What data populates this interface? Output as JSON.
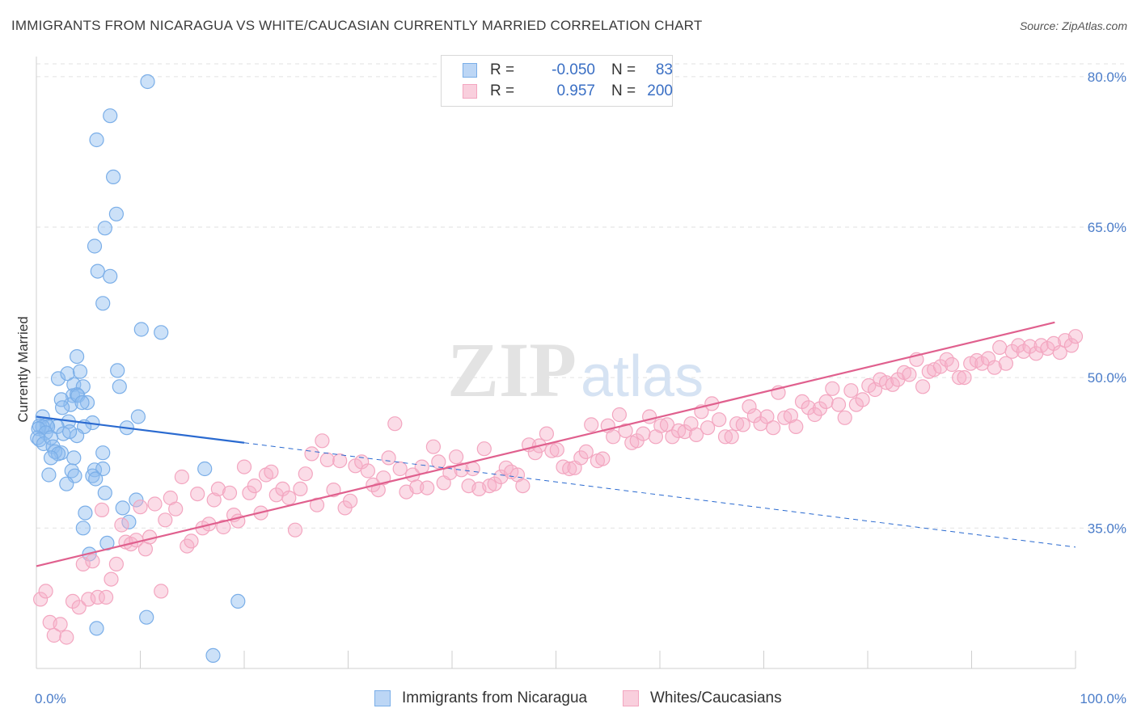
{
  "title": "IMMIGRANTS FROM NICARAGUA VS WHITE/CAUCASIAN CURRENTLY MARRIED CORRELATION CHART",
  "source": "Source: ZipAtlas.com",
  "watermark": {
    "zip": "ZIP",
    "atlas": "atlas"
  },
  "legend": {
    "r_label": "R =",
    "n_label": "N =",
    "rows": [
      {
        "r": "-0.050",
        "n": "83",
        "color": "#7aaee8"
      },
      {
        "r": "0.957",
        "n": "200",
        "color": "#f3a6c0"
      }
    ]
  },
  "chart_data": {
    "type": "scatter",
    "ylabel": "Currently Married",
    "xlim": [
      0,
      100
    ],
    "ylim": [
      21,
      82
    ],
    "y_ticks": [
      {
        "value": 80,
        "label": "80.0%"
      },
      {
        "value": 65,
        "label": "65.0%"
      },
      {
        "value": 50,
        "label": "50.0%"
      },
      {
        "value": 35,
        "label": "35.0%"
      }
    ],
    "x_tick_labels": [
      {
        "value": 0,
        "label": "0.0%"
      },
      {
        "value": 100,
        "label": "100.0%"
      }
    ],
    "grid": true,
    "series": [
      {
        "name": "Immigrants from Nicaragua",
        "color": "#7aaee8",
        "line_color": "#2a6ad0",
        "trend": {
          "x0": 0,
          "y0": 46.1,
          "x1": 100,
          "y1": 33.1,
          "solid_until": 20
        },
        "points": [
          [
            10.7,
            79.5
          ],
          [
            7.1,
            76.1
          ],
          [
            5.8,
            73.7
          ],
          [
            7.4,
            70.0
          ],
          [
            7.7,
            66.3
          ],
          [
            6.6,
            64.9
          ],
          [
            5.6,
            63.1
          ],
          [
            5.9,
            60.6
          ],
          [
            7.1,
            60.1
          ],
          [
            6.4,
            57.4
          ],
          [
            10.1,
            54.8
          ],
          [
            12.0,
            54.5
          ],
          [
            3.9,
            52.1
          ],
          [
            7.8,
            50.7
          ],
          [
            2.1,
            49.9
          ],
          [
            3.0,
            50.4
          ],
          [
            4.2,
            50.6
          ],
          [
            8.0,
            49.1
          ],
          [
            3.6,
            49.3
          ],
          [
            4.5,
            49.1
          ],
          [
            3.5,
            48.2
          ],
          [
            3.3,
            47.3
          ],
          [
            3.9,
            48.3
          ],
          [
            4.0,
            48.2
          ],
          [
            2.4,
            47.8
          ],
          [
            4.9,
            47.5
          ],
          [
            4.4,
            47.5
          ],
          [
            2.5,
            47.0
          ],
          [
            9.8,
            46.1
          ],
          [
            0.6,
            46.1
          ],
          [
            1.0,
            45.3
          ],
          [
            3.1,
            45.6
          ],
          [
            2.0,
            45.1
          ],
          [
            0.3,
            45.2
          ],
          [
            1.1,
            45.1
          ],
          [
            0.6,
            45.1
          ],
          [
            5.4,
            45.5
          ],
          [
            4.6,
            45.1
          ],
          [
            8.7,
            45.0
          ],
          [
            0.2,
            44.9
          ],
          [
            0.9,
            44.5
          ],
          [
            0.1,
            44.0
          ],
          [
            2.6,
            44.4
          ],
          [
            3.9,
            44.2
          ],
          [
            3.2,
            44.6
          ],
          [
            0.3,
            43.8
          ],
          [
            0.7,
            43.4
          ],
          [
            1.4,
            44.0
          ],
          [
            1.6,
            43.1
          ],
          [
            2.4,
            42.5
          ],
          [
            1.8,
            42.6
          ],
          [
            6.4,
            42.5
          ],
          [
            2.1,
            42.4
          ],
          [
            3.6,
            42.0
          ],
          [
            1.4,
            42.0
          ],
          [
            16.2,
            40.9
          ],
          [
            5.6,
            40.8
          ],
          [
            6.4,
            40.9
          ],
          [
            3.4,
            40.7
          ],
          [
            5.4,
            40.2
          ],
          [
            1.2,
            40.3
          ],
          [
            3.7,
            40.2
          ],
          [
            5.7,
            39.9
          ],
          [
            2.9,
            39.4
          ],
          [
            6.6,
            38.5
          ],
          [
            9.6,
            37.8
          ],
          [
            8.3,
            37.0
          ],
          [
            4.7,
            36.5
          ],
          [
            8.9,
            35.6
          ],
          [
            4.5,
            35.0
          ],
          [
            6.8,
            33.5
          ],
          [
            5.1,
            32.4
          ],
          [
            19.4,
            27.7
          ],
          [
            10.6,
            26.1
          ],
          [
            5.8,
            25.0
          ],
          [
            17.0,
            22.3
          ]
        ]
      },
      {
        "name": "Whites/Caucasians",
        "color": "#f3a6c0",
        "line_color": "#e0608e",
        "trend": {
          "x0": 0,
          "y0": 31.2,
          "x1": 98,
          "y1": 55.5,
          "solid_until": 98
        },
        "points": [
          [
            0.4,
            27.9
          ],
          [
            0.9,
            28.7
          ],
          [
            1.3,
            25.6
          ],
          [
            1.7,
            24.3
          ],
          [
            2.3,
            25.4
          ],
          [
            2.9,
            24.1
          ],
          [
            3.5,
            27.7
          ],
          [
            4.1,
            27.1
          ],
          [
            4.5,
            31.4
          ],
          [
            5.0,
            27.9
          ],
          [
            5.4,
            31.7
          ],
          [
            5.9,
            28.1
          ],
          [
            6.3,
            36.8
          ],
          [
            6.7,
            28.1
          ],
          [
            7.2,
            29.9
          ],
          [
            7.7,
            31.4
          ],
          [
            8.2,
            35.3
          ],
          [
            8.6,
            33.6
          ],
          [
            9.1,
            33.4
          ],
          [
            9.6,
            33.8
          ],
          [
            10.0,
            37.1
          ],
          [
            10.5,
            32.9
          ],
          [
            10.9,
            34.1
          ],
          [
            11.4,
            37.4
          ],
          [
            12.0,
            28.7
          ],
          [
            12.4,
            35.8
          ],
          [
            12.9,
            38.0
          ],
          [
            13.4,
            36.9
          ],
          [
            14.0,
            40.1
          ],
          [
            14.5,
            33.2
          ],
          [
            14.9,
            33.7
          ],
          [
            15.5,
            38.4
          ],
          [
            16.0,
            35.0
          ],
          [
            16.6,
            35.4
          ],
          [
            17.1,
            37.8
          ],
          [
            17.5,
            38.9
          ],
          [
            18.0,
            35.1
          ],
          [
            18.6,
            38.5
          ],
          [
            19.0,
            36.3
          ],
          [
            19.4,
            35.7
          ],
          [
            20.0,
            41.1
          ],
          [
            20.5,
            38.5
          ],
          [
            21.0,
            39.2
          ],
          [
            21.6,
            36.5
          ],
          [
            22.1,
            40.3
          ],
          [
            22.6,
            40.6
          ],
          [
            23.1,
            38.3
          ],
          [
            23.7,
            38.9
          ],
          [
            24.3,
            38.0
          ],
          [
            24.9,
            34.8
          ],
          [
            25.4,
            38.9
          ],
          [
            25.9,
            40.4
          ],
          [
            26.5,
            42.4
          ],
          [
            27.0,
            37.3
          ],
          [
            27.5,
            43.7
          ],
          [
            28.0,
            41.8
          ],
          [
            28.6,
            38.8
          ],
          [
            29.2,
            41.7
          ],
          [
            29.7,
            37.0
          ],
          [
            30.2,
            37.7
          ],
          [
            30.7,
            41.2
          ],
          [
            31.3,
            41.6
          ],
          [
            31.9,
            40.7
          ],
          [
            32.4,
            39.3
          ],
          [
            32.9,
            38.8
          ],
          [
            33.4,
            40.0
          ],
          [
            33.9,
            42.0
          ],
          [
            34.5,
            45.4
          ],
          [
            35.0,
            40.9
          ],
          [
            35.6,
            38.6
          ],
          [
            36.2,
            40.3
          ],
          [
            36.6,
            39.1
          ],
          [
            37.1,
            41.1
          ],
          [
            37.6,
            39.0
          ],
          [
            38.2,
            43.1
          ],
          [
            38.7,
            41.6
          ],
          [
            39.2,
            39.5
          ],
          [
            39.8,
            40.5
          ],
          [
            40.4,
            42.1
          ],
          [
            40.9,
            40.8
          ],
          [
            41.6,
            39.2
          ],
          [
            42.0,
            40.9
          ],
          [
            42.6,
            38.9
          ],
          [
            43.1,
            42.9
          ],
          [
            43.6,
            39.2
          ],
          [
            44.1,
            39.4
          ],
          [
            44.7,
            40.1
          ],
          [
            45.2,
            41.0
          ],
          [
            45.7,
            40.6
          ],
          [
            46.3,
            40.3
          ],
          [
            46.8,
            39.2
          ],
          [
            47.4,
            43.3
          ],
          [
            48.0,
            42.5
          ],
          [
            48.4,
            43.2
          ],
          [
            49.1,
            44.4
          ],
          [
            49.6,
            42.7
          ],
          [
            50.1,
            42.8
          ],
          [
            50.7,
            41.1
          ],
          [
            51.3,
            40.9
          ],
          [
            51.8,
            41.0
          ],
          [
            52.4,
            42.0
          ],
          [
            52.9,
            42.6
          ],
          [
            53.4,
            45.3
          ],
          [
            54.0,
            41.7
          ],
          [
            54.5,
            41.9
          ],
          [
            55.0,
            45.2
          ],
          [
            55.5,
            44.1
          ],
          [
            56.1,
            46.3
          ],
          [
            56.7,
            44.7
          ],
          [
            57.3,
            43.5
          ],
          [
            57.8,
            43.7
          ],
          [
            58.4,
            44.4
          ],
          [
            59.0,
            46.1
          ],
          [
            59.6,
            44.1
          ],
          [
            60.1,
            45.2
          ],
          [
            60.7,
            45.3
          ],
          [
            61.2,
            44.1
          ],
          [
            61.8,
            44.7
          ],
          [
            62.4,
            44.6
          ],
          [
            63.0,
            45.4
          ],
          [
            63.5,
            44.3
          ],
          [
            64.0,
            46.6
          ],
          [
            64.6,
            45.0
          ],
          [
            65.0,
            47.4
          ],
          [
            65.7,
            45.8
          ],
          [
            66.3,
            44.1
          ],
          [
            66.9,
            44.1
          ],
          [
            67.4,
            45.4
          ],
          [
            68.0,
            45.3
          ],
          [
            68.6,
            47.1
          ],
          [
            69.1,
            46.2
          ],
          [
            69.7,
            45.4
          ],
          [
            70.3,
            46.1
          ],
          [
            70.9,
            45.0
          ],
          [
            71.4,
            48.5
          ],
          [
            72.0,
            46.0
          ],
          [
            72.6,
            46.2
          ],
          [
            73.1,
            45.1
          ],
          [
            73.7,
            47.6
          ],
          [
            74.3,
            47.0
          ],
          [
            74.9,
            46.3
          ],
          [
            75.4,
            46.9
          ],
          [
            76.0,
            47.6
          ],
          [
            76.6,
            48.9
          ],
          [
            77.2,
            47.3
          ],
          [
            77.8,
            46.0
          ],
          [
            78.4,
            48.7
          ],
          [
            78.9,
            47.3
          ],
          [
            79.5,
            47.8
          ],
          [
            80.1,
            49.2
          ],
          [
            80.7,
            48.8
          ],
          [
            81.2,
            49.8
          ],
          [
            81.8,
            49.5
          ],
          [
            82.4,
            49.3
          ],
          [
            82.9,
            49.8
          ],
          [
            83.5,
            50.5
          ],
          [
            84.0,
            50.3
          ],
          [
            84.7,
            51.8
          ],
          [
            85.3,
            49.1
          ],
          [
            85.9,
            50.6
          ],
          [
            86.4,
            50.8
          ],
          [
            87.0,
            51.1
          ],
          [
            87.6,
            51.8
          ],
          [
            88.1,
            51.3
          ],
          [
            88.8,
            50.0
          ],
          [
            89.3,
            50.0
          ],
          [
            89.9,
            51.4
          ],
          [
            90.5,
            51.7
          ],
          [
            91.0,
            51.4
          ],
          [
            91.6,
            51.9
          ],
          [
            92.2,
            51.0
          ],
          [
            92.7,
            53.0
          ],
          [
            93.3,
            51.4
          ],
          [
            93.9,
            52.6
          ],
          [
            94.5,
            53.2
          ],
          [
            95.0,
            52.6
          ],
          [
            95.6,
            53.1
          ],
          [
            96.2,
            52.4
          ],
          [
            96.7,
            53.2
          ],
          [
            97.3,
            52.9
          ],
          [
            97.9,
            53.4
          ],
          [
            98.5,
            52.5
          ],
          [
            99.0,
            53.7
          ],
          [
            99.6,
            53.2
          ],
          [
            100.0,
            54.1
          ]
        ]
      }
    ]
  },
  "bottom_legend": [
    {
      "label": "Immigrants from Nicaragua",
      "color": "#7aaee8"
    },
    {
      "label": "Whites/Caucasians",
      "color": "#f3a6c0"
    }
  ]
}
